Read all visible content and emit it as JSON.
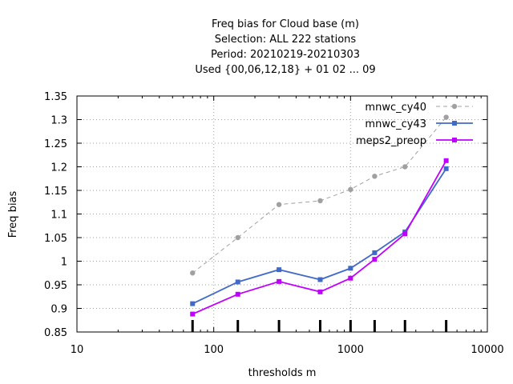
{
  "chart_data": {
    "type": "line",
    "title_lines": [
      "Freq bias  for Cloud base (m)",
      "Selection: ALL    222 stations",
      "Period: 20210219-20210303",
      "Used {00,06,12,18} + 01 02 ... 09"
    ],
    "xlabel": "thresholds m",
    "ylabel": "Freq bias",
    "x_scale": "log",
    "xlim": [
      10,
      10000
    ],
    "ylim": [
      0.85,
      1.35
    ],
    "x_ticks": [
      10,
      100,
      1000,
      10000
    ],
    "x_tick_labels": [
      "10",
      "100",
      "1000",
      "10000"
    ],
    "y_ticks": [
      0.85,
      0.9,
      0.95,
      1.0,
      1.05,
      1.1,
      1.15,
      1.2,
      1.25,
      1.3,
      1.35
    ],
    "y_tick_labels": [
      "0.85",
      "0.9",
      "0.95",
      "1",
      "1.05",
      "1.1",
      "1.15",
      "1.2",
      "1.25",
      "1.3",
      "1.35"
    ],
    "grid": true,
    "legend_position": "top-right",
    "x": [
      70,
      150,
      300,
      600,
      1000,
      1500,
      2500,
      5000
    ],
    "series": [
      {
        "name": "mnwc_cy40",
        "color": "#a0a0a0",
        "dash": true,
        "marker": "circle",
        "values": [
          0.975,
          1.05,
          1.12,
          1.128,
          1.152,
          1.18,
          1.2,
          1.305
        ]
      },
      {
        "name": "mnwc_cy43",
        "color": "#4169c8",
        "dash": false,
        "marker": "square",
        "values": [
          0.91,
          0.956,
          0.982,
          0.961,
          0.985,
          1.018,
          1.062,
          1.196
        ]
      },
      {
        "name": "meps2_preop",
        "color": "#c000ff",
        "dash": false,
        "marker": "square",
        "values": [
          0.888,
          0.93,
          0.957,
          0.935,
          0.964,
          1.004,
          1.058,
          1.213
        ]
      }
    ],
    "threshold_markers": [
      70,
      150,
      300,
      600,
      1000,
      1500,
      2500,
      5000
    ]
  }
}
